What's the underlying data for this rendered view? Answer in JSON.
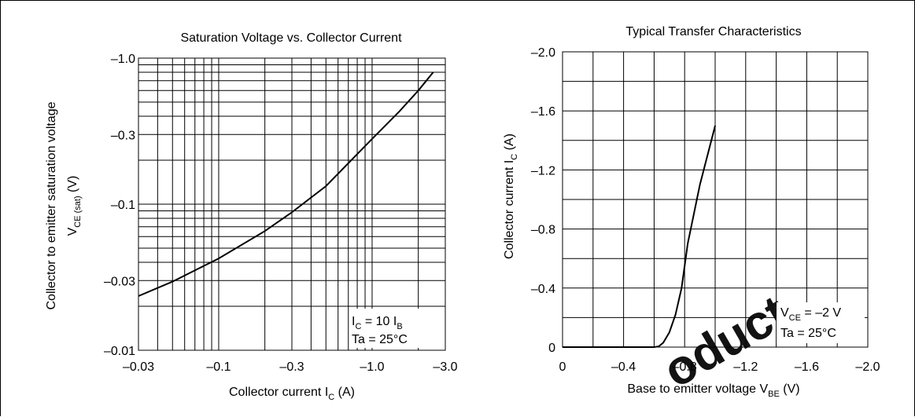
{
  "colors": {
    "background": "#ffffff",
    "grid": "#000000",
    "curve": "#000000",
    "watermark": "#e8101c"
  },
  "watermark": {
    "text": "oduct"
  },
  "chart_data": [
    {
      "type": "line",
      "title": "Saturation Voltage vs. Collector Current",
      "xscale": "log",
      "yscale": "log",
      "xlim": [
        -0.03,
        -3.0
      ],
      "ylim": [
        -0.01,
        -1.0
      ],
      "grid": true,
      "xlabel": {
        "main": "Collector current  I",
        "sub": "C",
        "tail": "  (A)"
      },
      "ylabel": {
        "line1": "Collector to emitter saturation voltage",
        "line2_main": "V",
        "line2_sub": "CE (sat)",
        "line2_tail": "  (V)"
      },
      "xticks": [
        {
          "value": -0.03,
          "label": "–0.03"
        },
        {
          "value": -0.1,
          "label": "–0.1"
        },
        {
          "value": -0.3,
          "label": "–0.3"
        },
        {
          "value": -1.0,
          "label": "–1.0"
        },
        {
          "value": -3.0,
          "label": "–3.0"
        }
      ],
      "yticks": [
        {
          "value": -0.01,
          "label": "–0.01"
        },
        {
          "value": -0.03,
          "label": "–0.03"
        },
        {
          "value": -0.1,
          "label": "–0.1"
        },
        {
          "value": -0.3,
          "label": "–0.3"
        },
        {
          "value": -1.0,
          "label": "–1.0"
        }
      ],
      "conditions": [
        {
          "main": "I",
          "sub": "C",
          "mid": " = 10 I",
          "sub2": "B"
        },
        {
          "main": "Ta = 25°C",
          "sub": "",
          "mid": "",
          "sub2": ""
        }
      ],
      "x": [
        -0.03,
        -0.05,
        -0.1,
        -0.2,
        -0.3,
        -0.5,
        -1.0,
        -1.5,
        -2.0,
        -2.5
      ],
      "y": [
        -0.0235,
        -0.0295,
        -0.0425,
        -0.0655,
        -0.088,
        -0.133,
        -0.28,
        -0.43,
        -0.6,
        -0.8
      ]
    },
    {
      "type": "line",
      "title": "Typical Transfer Characteristics",
      "xlim": [
        0,
        -2.0
      ],
      "ylim": [
        0,
        -2.0
      ],
      "grid": true,
      "xlabel": {
        "main": "Base to emitter voltage  V",
        "sub": "BE",
        "tail": "  (V)"
      },
      "ylabel": {
        "main": "Collector current  I",
        "sub": "C",
        "tail": "  (A)"
      },
      "xticks": [
        {
          "value": 0,
          "label": "0"
        },
        {
          "value": -0.4,
          "label": "–0.4"
        },
        {
          "value": -0.8,
          "label": "–0.8"
        },
        {
          "value": -1.2,
          "label": "–1.2"
        },
        {
          "value": -1.6,
          "label": "–1.6"
        },
        {
          "value": -2.0,
          "label": "–2.0"
        }
      ],
      "yticks": [
        {
          "value": 0,
          "label": "0"
        },
        {
          "value": -0.4,
          "label": "–0.4"
        },
        {
          "value": -0.8,
          "label": "–0.8"
        },
        {
          "value": -1.2,
          "label": "–1.2"
        },
        {
          "value": -1.6,
          "label": "–1.6"
        },
        {
          "value": -2.0,
          "label": "–2.0"
        }
      ],
      "conditions": [
        {
          "main": "V",
          "sub": "CE",
          "mid": " = –2 V",
          "sub2": ""
        },
        {
          "main": "Ta = 25°C",
          "sub": "",
          "mid": "",
          "sub2": ""
        }
      ],
      "x": [
        0,
        -0.6,
        -0.63,
        -0.66,
        -0.7,
        -0.74,
        -0.78,
        -0.82,
        -0.9,
        -1.0
      ],
      "y": [
        0,
        0,
        -0.005,
        -0.03,
        -0.1,
        -0.22,
        -0.4,
        -0.7,
        -1.1,
        -1.5
      ]
    }
  ]
}
